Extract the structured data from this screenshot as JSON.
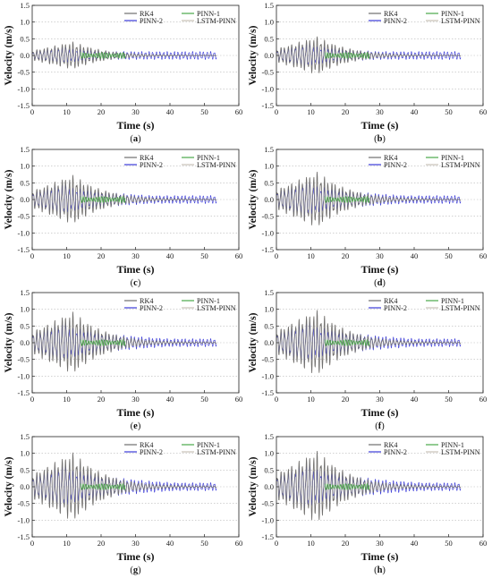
{
  "chart_data": [
    {
      "type": "line",
      "panel_label": "(",
      "panel_letter": "a",
      "panel_close": ")",
      "xlabel": "Time (s)",
      "ylabel": "Velocity (m/s)",
      "xlim": [
        0,
        60
      ],
      "ylim": [
        -1.5,
        1.5
      ],
      "xticks": [
        0,
        10,
        20,
        30,
        40,
        50,
        60
      ],
      "yticks": [
        -1.5,
        -1.0,
        -0.5,
        0.0,
        0.5,
        1.0,
        1.5
      ],
      "grid": true,
      "legend_position": "top-right",
      "peak_amplitude": 0.42,
      "series": [
        {
          "name": "RK4",
          "color": "#6e6e6e"
        },
        {
          "name": "PINN-1",
          "color": "#4aa84a"
        },
        {
          "name": "PINN-2",
          "color": "#3a3ad8"
        },
        {
          "name": "LSTM-PINN",
          "color": "#c8c0b6"
        }
      ]
    },
    {
      "type": "line",
      "panel_label": "(",
      "panel_letter": "b",
      "panel_close": ")",
      "xlabel": "Time (s)",
      "ylabel": "Velocity (m/s)",
      "xlim": [
        0,
        60
      ],
      "ylim": [
        -1.5,
        1.5
      ],
      "xticks": [
        0,
        10,
        20,
        30,
        40,
        50,
        60
      ],
      "yticks": [
        -1.5,
        -1.0,
        -0.5,
        0.0,
        0.5,
        1.0,
        1.5
      ],
      "grid": true,
      "legend_position": "top-right",
      "peak_amplitude": 0.58,
      "series": [
        {
          "name": "RK4",
          "color": "#6e6e6e"
        },
        {
          "name": "PINN-1",
          "color": "#4aa84a"
        },
        {
          "name": "PINN-2",
          "color": "#3a3ad8"
        },
        {
          "name": "LSTM-PINN",
          "color": "#c8c0b6"
        }
      ]
    },
    {
      "type": "line",
      "panel_label": "(",
      "panel_letter": "c",
      "panel_close": ")",
      "xlabel": "Time (s)",
      "ylabel": "Velocity (m/s)",
      "xlim": [
        0,
        60
      ],
      "ylim": [
        -1.5,
        1.5
      ],
      "xticks": [
        0,
        10,
        20,
        30,
        40,
        50,
        60
      ],
      "yticks": [
        -1.5,
        -1.0,
        -0.5,
        0.0,
        0.5,
        1.0,
        1.5
      ],
      "grid": true,
      "legend_position": "top-right",
      "peak_amplitude": 0.75,
      "series": [
        {
          "name": "RK4",
          "color": "#6e6e6e"
        },
        {
          "name": "PINN-1",
          "color": "#4aa84a"
        },
        {
          "name": "PINN-2",
          "color": "#3a3ad8"
        },
        {
          "name": "LSTM-PINN",
          "color": "#c8c0b6"
        }
      ]
    },
    {
      "type": "line",
      "panel_label": "(",
      "panel_letter": "d",
      "panel_close": ")",
      "xlabel": "Time (s)",
      "ylabel": "Velocity (m/s)",
      "xlim": [
        0,
        60
      ],
      "ylim": [
        -1.5,
        1.5
      ],
      "xticks": [
        0,
        10,
        20,
        30,
        40,
        50,
        60
      ],
      "yticks": [
        -1.5,
        -1.0,
        -0.5,
        0.0,
        0.5,
        1.0,
        1.5
      ],
      "grid": true,
      "legend_position": "top-right",
      "peak_amplitude": 0.85,
      "series": [
        {
          "name": "RK4",
          "color": "#6e6e6e"
        },
        {
          "name": "PINN-1",
          "color": "#4aa84a"
        },
        {
          "name": "PINN-2",
          "color": "#3a3ad8"
        },
        {
          "name": "LSTM-PINN",
          "color": "#c8c0b6"
        }
      ]
    },
    {
      "type": "line",
      "panel_label": "(",
      "panel_letter": "e",
      "panel_close": ")",
      "xlabel": "Time (s)",
      "ylabel": "Velocity (m/s)",
      "xlim": [
        0,
        60
      ],
      "ylim": [
        -1.5,
        1.5
      ],
      "xticks": [
        0,
        10,
        20,
        30,
        40,
        50,
        60
      ],
      "yticks": [
        -1.5,
        -1.0,
        -0.5,
        0.0,
        0.5,
        1.0,
        1.5
      ],
      "grid": true,
      "legend_position": "top-right",
      "peak_amplitude": 0.95,
      "series": [
        {
          "name": "RK4",
          "color": "#6e6e6e"
        },
        {
          "name": "PINN-1",
          "color": "#4aa84a"
        },
        {
          "name": "PINN-2",
          "color": "#3a3ad8"
        },
        {
          "name": "LSTM-PINN",
          "color": "#c8c0b6"
        }
      ]
    },
    {
      "type": "line",
      "panel_label": "(",
      "panel_letter": "f",
      "panel_close": ")",
      "xlabel": "Time (s)",
      "ylabel": "Velocity (m/s)",
      "xlim": [
        0,
        60
      ],
      "ylim": [
        -1.5,
        1.5
      ],
      "xticks": [
        0,
        10,
        20,
        30,
        40,
        50,
        60
      ],
      "yticks": [
        -1.5,
        -1.0,
        -0.5,
        0.0,
        0.5,
        1.0,
        1.5
      ],
      "grid": true,
      "legend_position": "top-right",
      "peak_amplitude": 1.0,
      "series": [
        {
          "name": "RK4",
          "color": "#6e6e6e"
        },
        {
          "name": "PINN-1",
          "color": "#4aa84a"
        },
        {
          "name": "PINN-2",
          "color": "#3a3ad8"
        },
        {
          "name": "LSTM-PINN",
          "color": "#c8c0b6"
        }
      ]
    },
    {
      "type": "line",
      "panel_label": "(",
      "panel_letter": "g",
      "panel_close": ")",
      "xlabel": "Time (s)",
      "ylabel": "Velocity (m/s)",
      "xlim": [
        0,
        60
      ],
      "ylim": [
        -1.5,
        1.5
      ],
      "xticks": [
        0,
        10,
        20,
        30,
        40,
        50,
        60
      ],
      "yticks": [
        -1.5,
        -1.0,
        -0.5,
        0.0,
        0.5,
        1.0,
        1.5
      ],
      "grid": true,
      "legend_position": "top-right",
      "peak_amplitude": 1.05,
      "series": [
        {
          "name": "RK4",
          "color": "#6e6e6e"
        },
        {
          "name": "PINN-1",
          "color": "#4aa84a"
        },
        {
          "name": "PINN-2",
          "color": "#3a3ad8"
        },
        {
          "name": "LSTM-PINN",
          "color": "#c8c0b6"
        }
      ]
    },
    {
      "type": "line",
      "panel_label": "(",
      "panel_letter": "h",
      "panel_close": ")",
      "xlabel": "Time (s)",
      "ylabel": "Velocity (m/s)",
      "xlim": [
        0,
        60
      ],
      "ylim": [
        -1.5,
        1.5
      ],
      "xticks": [
        0,
        10,
        20,
        30,
        40,
        50,
        60
      ],
      "yticks": [
        -1.5,
        -1.0,
        -0.5,
        0.0,
        0.5,
        1.0,
        1.5
      ],
      "grid": true,
      "legend_position": "top-right",
      "peak_amplitude": 1.1,
      "series": [
        {
          "name": "RK4",
          "color": "#6e6e6e"
        },
        {
          "name": "PINN-1",
          "color": "#4aa84a"
        },
        {
          "name": "PINN-2",
          "color": "#3a3ad8"
        },
        {
          "name": "LSTM-PINN",
          "color": "#c8c0b6"
        }
      ]
    }
  ]
}
